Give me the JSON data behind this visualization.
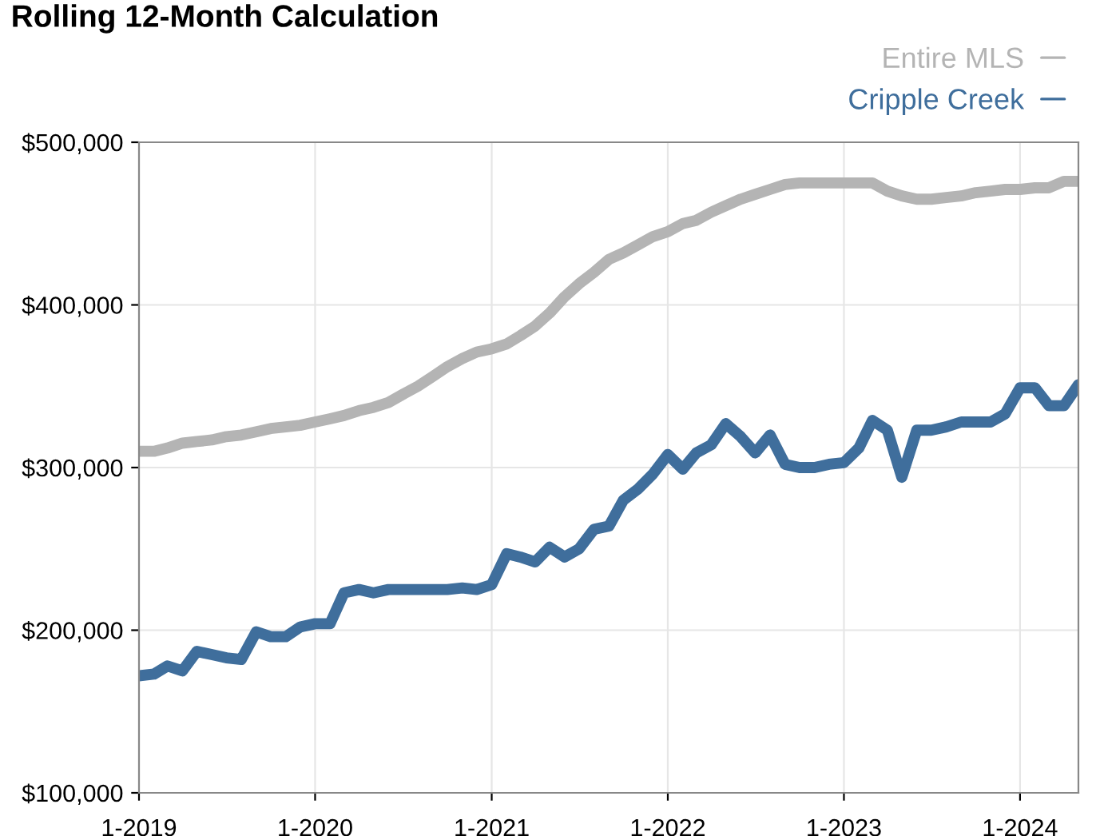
{
  "chart_data": {
    "type": "line",
    "title": "Rolling 12-Month Calculation",
    "x": [
      "2019-01",
      "2019-02",
      "2019-03",
      "2019-04",
      "2019-05",
      "2019-06",
      "2019-07",
      "2019-08",
      "2019-09",
      "2019-10",
      "2019-11",
      "2019-12",
      "2020-01",
      "2020-02",
      "2020-03",
      "2020-04",
      "2020-05",
      "2020-06",
      "2020-07",
      "2020-08",
      "2020-09",
      "2020-10",
      "2020-11",
      "2020-12",
      "2021-01",
      "2021-02",
      "2021-03",
      "2021-04",
      "2021-05",
      "2021-06",
      "2021-07",
      "2021-08",
      "2021-09",
      "2021-10",
      "2021-11",
      "2021-12",
      "2022-01",
      "2022-02",
      "2022-03",
      "2022-04",
      "2022-05",
      "2022-06",
      "2022-07",
      "2022-08",
      "2022-09",
      "2022-10",
      "2022-11",
      "2022-12",
      "2023-01",
      "2023-02",
      "2023-03",
      "2023-04",
      "2023-05",
      "2023-06",
      "2023-07",
      "2023-08",
      "2023-09",
      "2023-10",
      "2023-11",
      "2023-12",
      "2024-01",
      "2024-02",
      "2024-03",
      "2024-04",
      "2024-05"
    ],
    "series": [
      {
        "name": "Entire MLS",
        "color": "#b4b4b4",
        "values": [
          310000,
          310000,
          312000,
          315000,
          316000,
          317000,
          319000,
          320000,
          322000,
          324000,
          325000,
          326000,
          328000,
          330000,
          332000,
          335000,
          337000,
          340000,
          345000,
          350000,
          356000,
          362000,
          367000,
          371000,
          373000,
          376000,
          381000,
          387000,
          395000,
          405000,
          413000,
          420000,
          428000,
          432000,
          437000,
          442000,
          445000,
          450000,
          452000,
          457000,
          461000,
          465000,
          468000,
          471000,
          474000,
          475000,
          475000,
          475000,
          475000,
          475000,
          475000,
          470000,
          467000,
          465000,
          465000,
          466000,
          467000,
          469000,
          470000,
          471000,
          471000,
          472000,
          472000,
          476000,
          476000
        ]
      },
      {
        "name": "Cripple Creek",
        "color": "#3f6e9c",
        "values": [
          172000,
          173000,
          178000,
          175000,
          187000,
          185000,
          183000,
          182000,
          199000,
          196000,
          196000,
          202000,
          204000,
          204000,
          223000,
          225000,
          223000,
          225000,
          225000,
          225000,
          225000,
          225000,
          226000,
          225000,
          228000,
          247000,
          245000,
          242000,
          251000,
          245000,
          250000,
          262000,
          264000,
          280000,
          287000,
          296000,
          308000,
          299000,
          309000,
          314000,
          327000,
          319000,
          309000,
          320000,
          302000,
          300000,
          300000,
          302000,
          303000,
          312000,
          329000,
          323000,
          294000,
          323000,
          323000,
          325000,
          328000,
          328000,
          328000,
          333000,
          349000,
          349000,
          338000,
          338000,
          351000
        ]
      }
    ],
    "xlim": [
      "2019-01",
      "2024-05"
    ],
    "xticks": [
      {
        "value": "2019-01",
        "label": "1-2019"
      },
      {
        "value": "2020-01",
        "label": "1-2020"
      },
      {
        "value": "2021-01",
        "label": "1-2021"
      },
      {
        "value": "2022-01",
        "label": "1-2022"
      },
      {
        "value": "2023-01",
        "label": "1-2023"
      },
      {
        "value": "2024-01",
        "label": "1-2024"
      }
    ],
    "ylim": [
      100000,
      500000
    ],
    "yticks": [
      {
        "value": 100000,
        "label": "$100,000"
      },
      {
        "value": 200000,
        "label": "$200,000"
      },
      {
        "value": 300000,
        "label": "$300,000"
      },
      {
        "value": 400000,
        "label": "$400,000"
      },
      {
        "value": 500000,
        "label": "$500,000"
      }
    ],
    "grid": true,
    "legend": "top right",
    "marker": "none",
    "line_style": "solid"
  }
}
